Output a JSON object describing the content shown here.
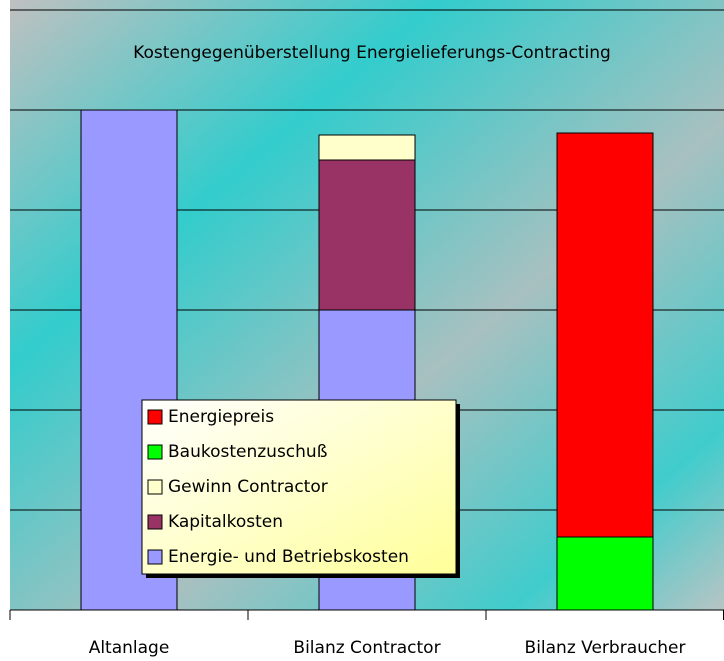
{
  "chart_data": {
    "type": "stacked-bar",
    "title": "Kostengegenüberstellung Energielieferungs-Contracting",
    "categories": [
      "Altanlage",
      "Bilanz Contractor",
      "Bilanz Verbraucher"
    ],
    "series": [
      {
        "name": "Energie- und Betriebskosten",
        "color": "#9999ff",
        "values": [
          5,
          3,
          null
        ]
      },
      {
        "name": "Kapitalkosten",
        "color": "#993366",
        "values": [
          null,
          1.5,
          null
        ]
      },
      {
        "name": "Gewinn Contractor",
        "color": "#ffffcc",
        "values": [
          null,
          0.25,
          null
        ]
      },
      {
        "name": "Baukostenzuschuß",
        "color": "#00ff00",
        "values": [
          null,
          null,
          0.73
        ]
      },
      {
        "name": "Energiepreis",
        "color": "#ff0000",
        "values": [
          null,
          null,
          4.04
        ]
      }
    ],
    "ylim": [
      0,
      6
    ],
    "yticks": [
      0,
      1,
      2,
      3,
      4,
      5,
      6
    ],
    "grid": true,
    "legend": "bottom-left"
  }
}
